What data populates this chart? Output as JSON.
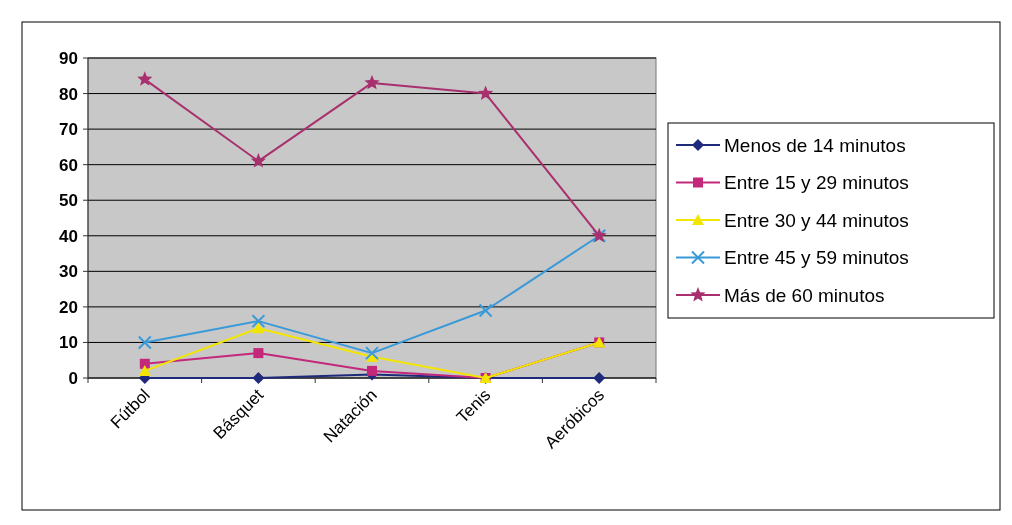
{
  "chart_data": {
    "type": "line",
    "categories": [
      "Fútbol",
      "Básquet",
      "Natación",
      "Tenis",
      "Aeróbicos"
    ],
    "series": [
      {
        "name": "Menos de 14 minutos",
        "color": "#1f2a7a",
        "marker": "diamond",
        "values": [
          0,
          0,
          1,
          0,
          0
        ]
      },
      {
        "name": "Entre 15 y 29 minutos",
        "color": "#c4287a",
        "marker": "square",
        "values": [
          4,
          7,
          2,
          0,
          10
        ]
      },
      {
        "name": "Entre 30 y 44 minutos",
        "color": "#f2e600",
        "marker": "triangle",
        "values": [
          2,
          14,
          6,
          0,
          10
        ]
      },
      {
        "name": "Entre 45 y 59 minutos",
        "color": "#3a9ad9",
        "marker": "cross",
        "values": [
          10,
          16,
          7,
          19,
          40
        ]
      },
      {
        "name": "Más de 60 minutos",
        "color": "#a8306e",
        "marker": "star",
        "values": [
          84,
          61,
          83,
          80,
          40
        ]
      }
    ],
    "ylim": [
      0,
      90
    ],
    "yticks": [
      0,
      10,
      20,
      30,
      40,
      50,
      60,
      70,
      80,
      90
    ],
    "grid": "y",
    "legend": "right"
  }
}
